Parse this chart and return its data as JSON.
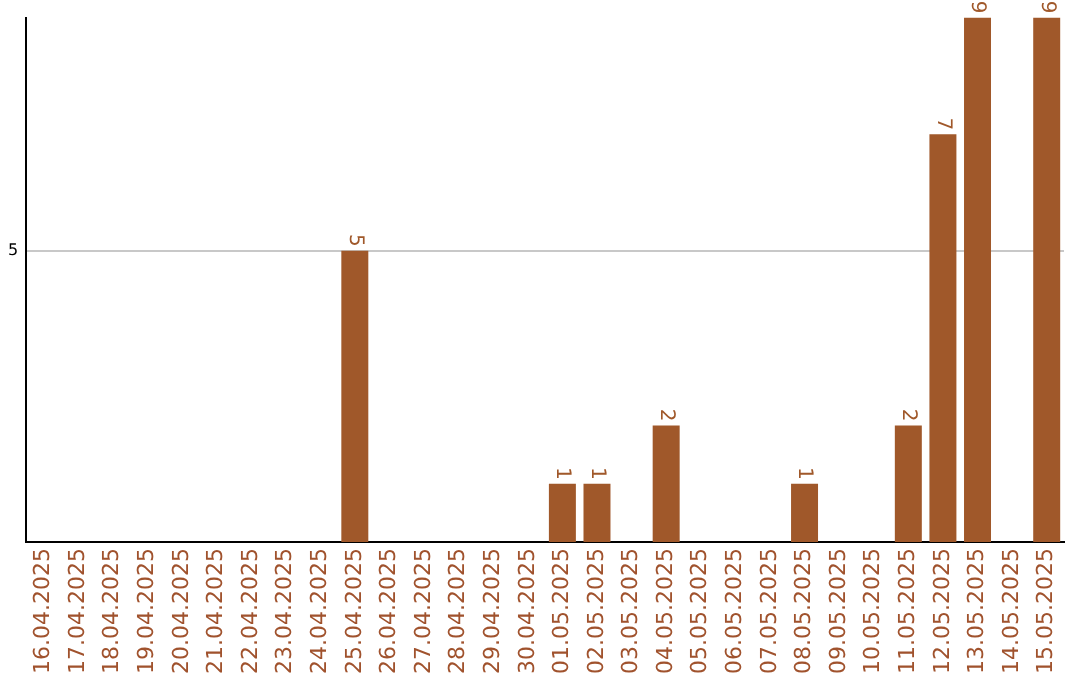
{
  "chart_data": {
    "type": "bar",
    "categories": [
      "16.04.2025",
      "17.04.2025",
      "18.04.2025",
      "19.04.2025",
      "20.04.2025",
      "21.04.2025",
      "22.04.2025",
      "23.04.2025",
      "24.04.2025",
      "25.04.2025",
      "26.04.2025",
      "27.04.2025",
      "28.04.2025",
      "29.04.2025",
      "30.04.2025",
      "01.05.2025",
      "02.05.2025",
      "03.05.2025",
      "04.05.2025",
      "05.05.2025",
      "06.05.2025",
      "07.05.2025",
      "08.05.2025",
      "09.05.2025",
      "10.05.2025",
      "11.05.2025",
      "12.05.2025",
      "13.05.2025",
      "14.05.2025",
      "15.05.2025"
    ],
    "values": [
      0,
      0,
      0,
      0,
      0,
      0,
      0,
      0,
      0,
      5,
      0,
      0,
      0,
      0,
      0,
      1,
      1,
      0,
      2,
      0,
      0,
      0,
      1,
      0,
      0,
      2,
      7,
      9,
      0,
      9
    ],
    "value_labels": [
      null,
      null,
      null,
      null,
      null,
      null,
      null,
      null,
      null,
      "5",
      null,
      null,
      null,
      null,
      null,
      "1",
      "1",
      null,
      "2",
      null,
      null,
      null,
      "1",
      null,
      null,
      "2",
      "7",
      "9",
      null,
      "9"
    ],
    "color": "#a0582a",
    "ylim": [
      0,
      9
    ],
    "yticks": [
      5
    ],
    "grid": "y",
    "legend": false
  }
}
